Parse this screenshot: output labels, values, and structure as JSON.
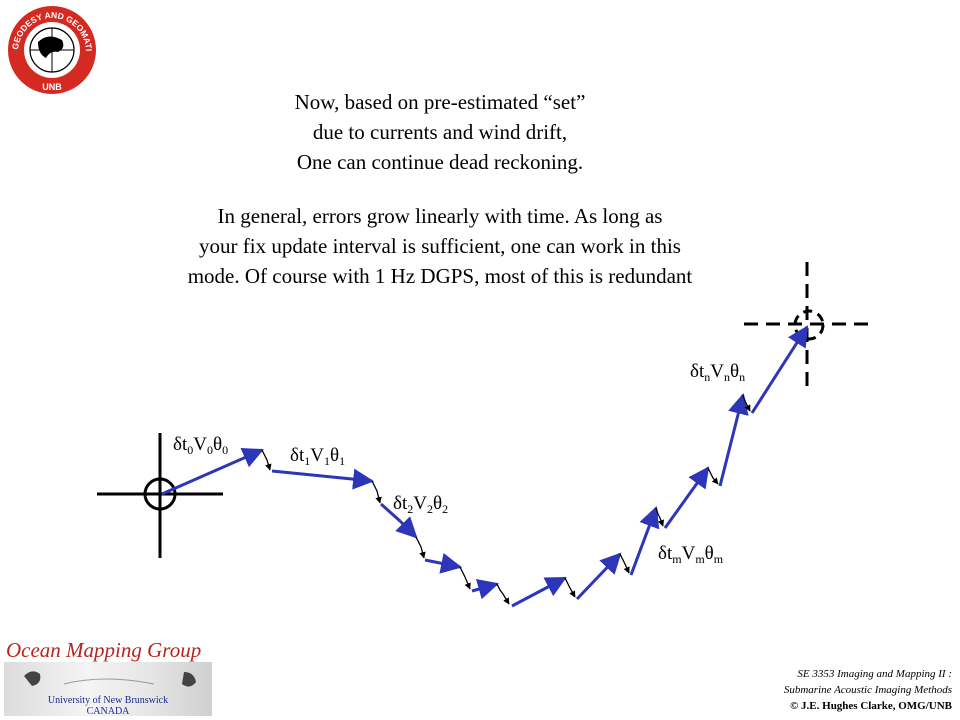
{
  "logo": {
    "ring_text": "GEODESY AND GEOMATICS ENGINEERING",
    "bottom_text": "UNB"
  },
  "intro_lines": [
    "Now, based on pre-estimated “set”",
    "due to currents and wind drift,",
    "One can continue dead reckoning."
  ],
  "general_lines": [
    "In general, errors grow linearly with time. As long as",
    "your fix update interval is sufficient, one can work in this",
    "mode. Of course with 1 Hz DGPS, most of this is redundant"
  ],
  "labels": {
    "l0": {
      "p1": "δt",
      "s1": "0",
      "p2": "V",
      "s2": "0",
      "p3": "θ",
      "s3": "0"
    },
    "l1": {
      "p1": "δt",
      "s1": "1",
      "p2": "V",
      "s2": "1",
      "p3": "θ",
      "s3": "1"
    },
    "l2": {
      "p1": "δt",
      "s1": "2",
      "p2": "V",
      "s2": "2",
      "p3": "θ",
      "s3": "2"
    },
    "lm": {
      "p1": "δt",
      "s1": "m",
      "p2": "V",
      "s2": "m",
      "p3": "θ",
      "s3": "m"
    },
    "ln": {
      "p1": "δt",
      "s1": "n",
      "p2": "V",
      "s2": "n",
      "p3": "θ",
      "s3": "n"
    }
  },
  "footer": {
    "group_name": "Ocean Mapping Group",
    "university": "University of New Brunswick",
    "country": "CANADA",
    "course_line1": "SE 3353 Imaging and Mapping II :",
    "course_line2": "Submarine Acoustic Imaging Methods",
    "copyright": "© J.E. Hughes Clarke, OMG/UNB"
  },
  "colors": {
    "track": "#2d35b8",
    "brand_red": "#b8241e",
    "navy": "#1c2a8c"
  }
}
